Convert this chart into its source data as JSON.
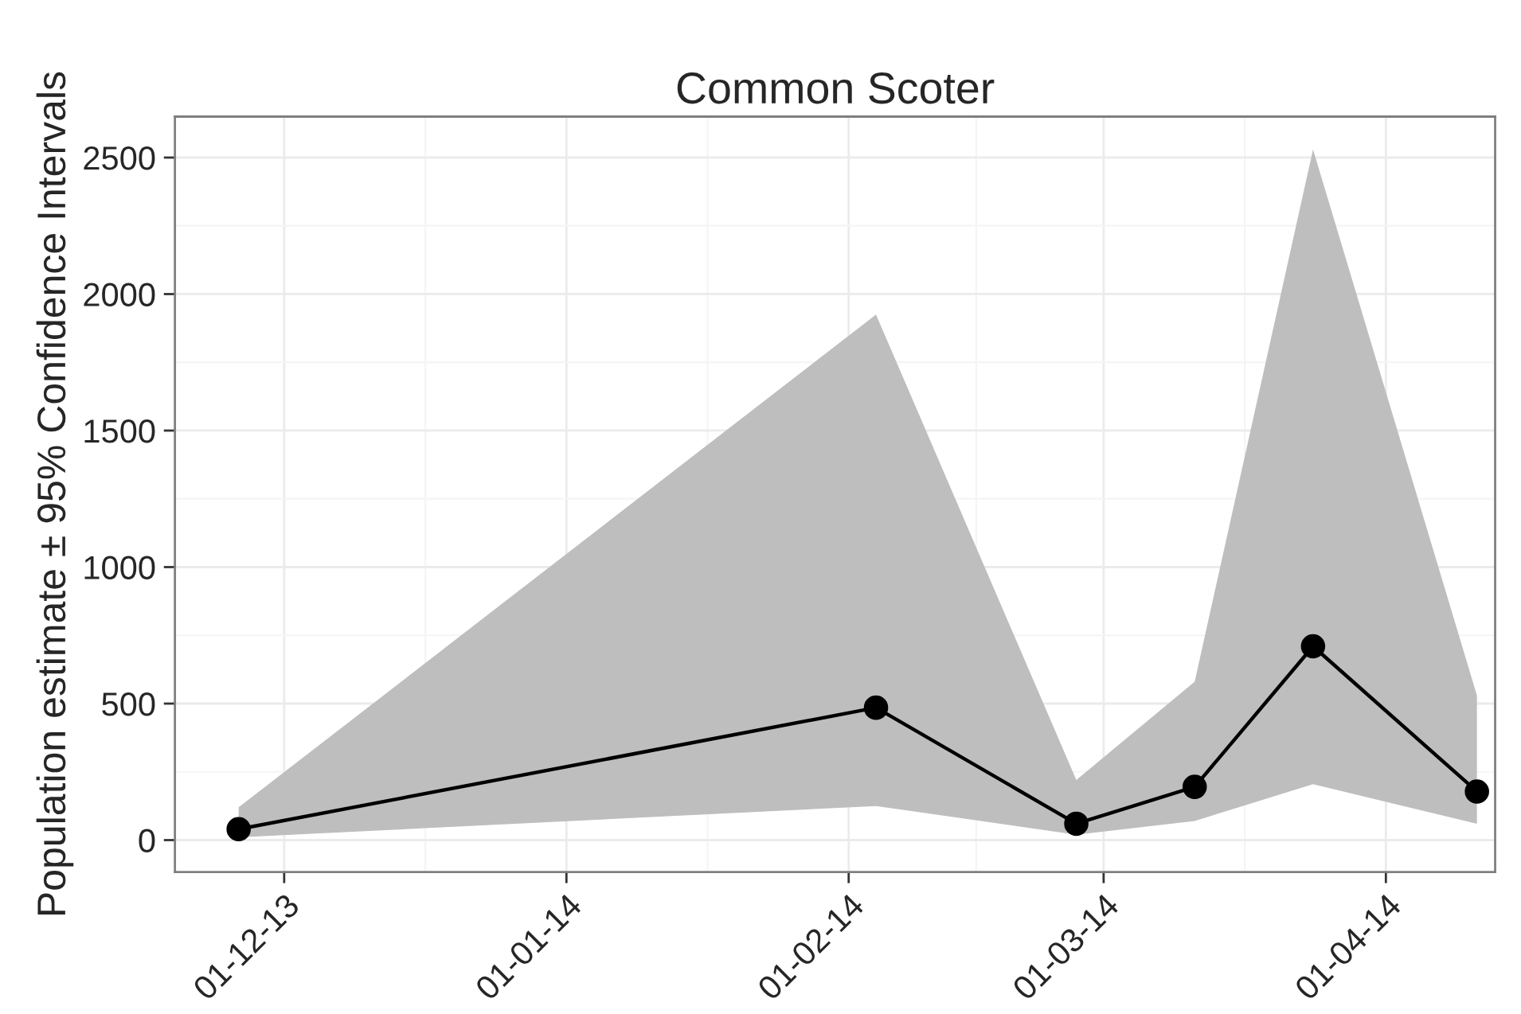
{
  "chart_data": {
    "type": "line",
    "title": "Common Scoter",
    "ylabel": "Population estimate ± 95% Confidence Intervals",
    "x": [
      "2013-11-26",
      "2014-02-04",
      "2014-02-26",
      "2014-03-11",
      "2014-03-24",
      "2014-04-11"
    ],
    "series": [
      {
        "color": "#000000",
        "values": [
          40,
          485,
          60,
          195,
          710,
          178
        ],
        "lower": [
          10,
          125,
          20,
          70,
          205,
          60
        ],
        "upper": [
          120,
          1925,
          220,
          580,
          2530,
          530
        ]
      }
    ],
    "xlim": [
      "2013-11-19",
      "2014-04-13"
    ],
    "xticks": [
      {
        "value": "2013-12-01",
        "label": "01-12-13"
      },
      {
        "value": "2014-01-01",
        "label": "01-01-14"
      },
      {
        "value": "2014-02-01",
        "label": "01-02-14"
      },
      {
        "value": "2014-03-01",
        "label": "01-03-14"
      },
      {
        "value": "2014-04-01",
        "label": "01-04-14"
      }
    ],
    "ylim": [
      -117,
      2650
    ],
    "yticks": [
      0,
      500,
      1000,
      1500,
      2000,
      2500
    ],
    "grid": true,
    "marker": "circle",
    "line_style": "solid"
  }
}
